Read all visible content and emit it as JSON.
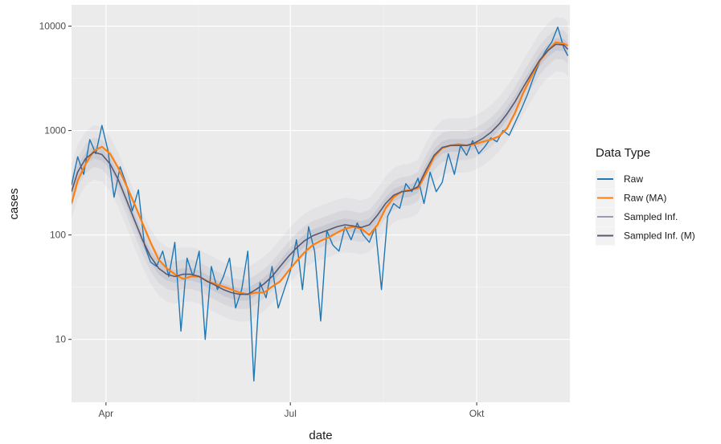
{
  "chart_data": {
    "type": "line",
    "title": "",
    "xlabel": "date",
    "ylabel": "cases",
    "y_scale": "log10",
    "ylim": [
      2.5,
      16000
    ],
    "xlim": [
      "2020-03-15",
      "2020-11-16"
    ],
    "grid": true,
    "x_ticks": [
      {
        "date": "2020-04-01",
        "label": "Apr"
      },
      {
        "date": "2020-07-01",
        "label": "Jul"
      },
      {
        "date": "2020-10-01",
        "label": "Okt"
      }
    ],
    "y_ticks": [
      {
        "value": 10,
        "label": "10"
      },
      {
        "value": 100,
        "label": "100"
      },
      {
        "value": 1000,
        "label": "1000"
      },
      {
        "value": 10000,
        "label": "10000"
      }
    ],
    "legend": {
      "title": "Data Type",
      "position": "right",
      "entries": [
        {
          "label": "Raw",
          "color": "#1f77b4"
        },
        {
          "label": "Raw (MA)",
          "color": "#ff7f0e"
        },
        {
          "label": "Sampled Inf.",
          "color": "#9a9ab0"
        },
        {
          "label": "Sampled Inf. (M)",
          "color": "#585870"
        }
      ]
    },
    "series": [
      {
        "name": "Raw",
        "color": "#1f77b4",
        "x": [
          "2020-03-15",
          "2020-03-18",
          "2020-03-21",
          "2020-03-24",
          "2020-03-27",
          "2020-03-30",
          "2020-04-02",
          "2020-04-05",
          "2020-04-08",
          "2020-04-11",
          "2020-04-14",
          "2020-04-17",
          "2020-04-20",
          "2020-04-23",
          "2020-04-26",
          "2020-04-29",
          "2020-05-02",
          "2020-05-05",
          "2020-05-08",
          "2020-05-11",
          "2020-05-14",
          "2020-05-17",
          "2020-05-20",
          "2020-05-23",
          "2020-05-26",
          "2020-05-29",
          "2020-06-01",
          "2020-06-04",
          "2020-06-07",
          "2020-06-10",
          "2020-06-13",
          "2020-06-16",
          "2020-06-19",
          "2020-06-22",
          "2020-06-25",
          "2020-06-28",
          "2020-07-01",
          "2020-07-04",
          "2020-07-07",
          "2020-07-10",
          "2020-07-13",
          "2020-07-16",
          "2020-07-19",
          "2020-07-22",
          "2020-07-25",
          "2020-07-28",
          "2020-07-31",
          "2020-08-03",
          "2020-08-06",
          "2020-08-09",
          "2020-08-12",
          "2020-08-15",
          "2020-08-18",
          "2020-08-21",
          "2020-08-24",
          "2020-08-27",
          "2020-08-30",
          "2020-09-02",
          "2020-09-05",
          "2020-09-08",
          "2020-09-11",
          "2020-09-14",
          "2020-09-17",
          "2020-09-20",
          "2020-09-23",
          "2020-09-26",
          "2020-09-29",
          "2020-10-02",
          "2020-10-05",
          "2020-10-08",
          "2020-10-11",
          "2020-10-14",
          "2020-10-17",
          "2020-10-20",
          "2020-10-23",
          "2020-10-26",
          "2020-10-29",
          "2020-11-01",
          "2020-11-04",
          "2020-11-07",
          "2020-11-10",
          "2020-11-13",
          "2020-11-15"
        ],
        "y": [
          300,
          560,
          380,
          820,
          600,
          1120,
          640,
          230,
          450,
          310,
          170,
          270,
          80,
          55,
          50,
          70,
          40,
          85,
          12,
          60,
          40,
          70,
          10,
          50,
          30,
          40,
          60,
          20,
          30,
          70,
          4,
          35,
          25,
          50,
          20,
          30,
          45,
          90,
          30,
          120,
          70,
          15,
          110,
          80,
          70,
          120,
          90,
          130,
          100,
          85,
          120,
          30,
          150,
          200,
          180,
          310,
          260,
          350,
          200,
          400,
          260,
          320,
          600,
          380,
          720,
          580,
          800,
          600,
          700,
          850,
          780,
          1000,
          900,
          1200,
          1600,
          2200,
          3200,
          4500,
          5800,
          7000,
          9800,
          6200,
          5200
        ]
      },
      {
        "name": "Raw (MA)",
        "color": "#ff7f0e",
        "x": [
          "2020-03-15",
          "2020-03-18",
          "2020-03-22",
          "2020-03-26",
          "2020-03-30",
          "2020-04-03",
          "2020-04-07",
          "2020-04-11",
          "2020-04-15",
          "2020-04-19",
          "2020-04-23",
          "2020-04-27",
          "2020-05-01",
          "2020-05-05",
          "2020-05-09",
          "2020-05-13",
          "2020-05-17",
          "2020-05-21",
          "2020-05-25",
          "2020-05-29",
          "2020-06-02",
          "2020-06-06",
          "2020-06-10",
          "2020-06-14",
          "2020-06-18",
          "2020-06-22",
          "2020-06-26",
          "2020-06-30",
          "2020-07-04",
          "2020-07-08",
          "2020-07-12",
          "2020-07-16",
          "2020-07-20",
          "2020-07-24",
          "2020-07-28",
          "2020-08-01",
          "2020-08-05",
          "2020-08-09",
          "2020-08-13",
          "2020-08-17",
          "2020-08-21",
          "2020-08-25",
          "2020-08-29",
          "2020-09-02",
          "2020-09-06",
          "2020-09-10",
          "2020-09-14",
          "2020-09-18",
          "2020-09-22",
          "2020-09-26",
          "2020-09-30",
          "2020-10-04",
          "2020-10-08",
          "2020-10-12",
          "2020-10-16",
          "2020-10-20",
          "2020-10-24",
          "2020-10-28",
          "2020-11-01",
          "2020-11-05",
          "2020-11-09",
          "2020-11-13",
          "2020-11-15"
        ],
        "y": [
          200,
          330,
          480,
          640,
          700,
          600,
          440,
          300,
          200,
          130,
          85,
          58,
          48,
          42,
          38,
          40,
          40,
          36,
          34,
          32,
          30,
          28,
          27,
          28,
          28,
          32,
          36,
          45,
          56,
          68,
          80,
          88,
          95,
          105,
          115,
          120,
          115,
          100,
          125,
          180,
          230,
          260,
          270,
          280,
          390,
          560,
          680,
          720,
          740,
          720,
          740,
          780,
          820,
          880,
          1050,
          1500,
          2300,
          3300,
          4600,
          5800,
          7000,
          6800,
          6500
        ]
      },
      {
        "name": "Sampled Inf. (M)",
        "color": "#585870",
        "x": [
          "2020-03-15",
          "2020-03-18",
          "2020-03-22",
          "2020-03-26",
          "2020-03-30",
          "2020-04-03",
          "2020-04-07",
          "2020-04-11",
          "2020-04-15",
          "2020-04-19",
          "2020-04-23",
          "2020-04-27",
          "2020-05-01",
          "2020-05-05",
          "2020-05-09",
          "2020-05-13",
          "2020-05-17",
          "2020-05-21",
          "2020-05-25",
          "2020-05-29",
          "2020-06-02",
          "2020-06-06",
          "2020-06-10",
          "2020-06-14",
          "2020-06-18",
          "2020-06-22",
          "2020-06-26",
          "2020-06-30",
          "2020-07-04",
          "2020-07-08",
          "2020-07-12",
          "2020-07-16",
          "2020-07-20",
          "2020-07-24",
          "2020-07-28",
          "2020-08-01",
          "2020-08-05",
          "2020-08-09",
          "2020-08-13",
          "2020-08-17",
          "2020-08-21",
          "2020-08-25",
          "2020-08-29",
          "2020-09-02",
          "2020-09-06",
          "2020-09-10",
          "2020-09-14",
          "2020-09-18",
          "2020-09-22",
          "2020-09-26",
          "2020-09-30",
          "2020-10-04",
          "2020-10-08",
          "2020-10-12",
          "2020-10-16",
          "2020-10-20",
          "2020-10-24",
          "2020-10-28",
          "2020-11-01",
          "2020-11-05",
          "2020-11-09",
          "2020-11-13",
          "2020-11-15"
        ],
        "y": [
          260,
          400,
          540,
          620,
          590,
          480,
          340,
          220,
          140,
          90,
          62,
          48,
          42,
          40,
          42,
          42,
          40,
          36,
          33,
          30,
          28,
          27,
          27,
          30,
          34,
          40,
          50,
          62,
          75,
          88,
          98,
          105,
          112,
          120,
          125,
          122,
          118,
          125,
          155,
          200,
          240,
          260,
          265,
          290,
          420,
          580,
          690,
          720,
          720,
          720,
          760,
          840,
          960,
          1150,
          1450,
          1900,
          2600,
          3500,
          4700,
          5800,
          6700,
          6600,
          6000
        ]
      }
    ]
  }
}
